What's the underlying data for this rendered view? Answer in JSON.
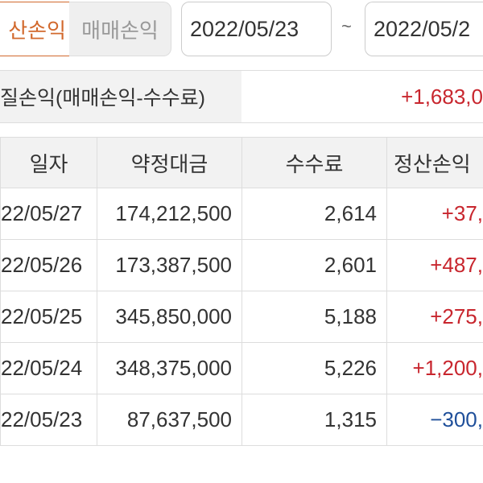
{
  "tabs": [
    {
      "label": "산손익",
      "active": true
    },
    {
      "label": "매매손익",
      "active": false
    }
  ],
  "date_range": {
    "start": "2022/05/23",
    "separator": "~",
    "end": "2022/05/2"
  },
  "summary": {
    "label": "질손익(매매손익-수수료)",
    "value": "+1,683,0"
  },
  "table": {
    "headers": [
      "일자",
      "약정대금",
      "수수료",
      "정산손익"
    ],
    "rows": [
      {
        "date": "22/05/27",
        "amount": "174,212,500",
        "fee": "2,614",
        "pnl": "+37,",
        "sign": "pos"
      },
      {
        "date": "22/05/26",
        "amount": "173,387,500",
        "fee": "2,601",
        "pnl": "+487,",
        "sign": "pos"
      },
      {
        "date": "22/05/25",
        "amount": "345,850,000",
        "fee": "5,188",
        "pnl": "+275,",
        "sign": "pos"
      },
      {
        "date": "22/05/24",
        "amount": "348,375,000",
        "fee": "5,226",
        "pnl": "+1,200,",
        "sign": "pos"
      },
      {
        "date": "22/05/23",
        "amount": "87,637,500",
        "fee": "1,315",
        "pnl": "−300,",
        "sign": "neg"
      }
    ]
  },
  "colors": {
    "accent": "#d2692d",
    "positive": "#c8262e",
    "negative": "#1f4f9a"
  }
}
